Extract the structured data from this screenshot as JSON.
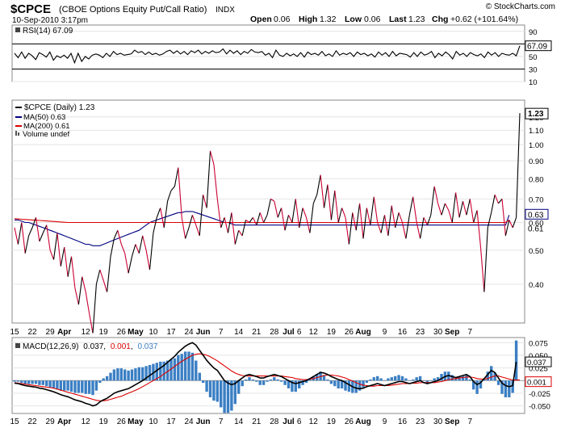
{
  "header": {
    "symbol": "$CPCE",
    "name": "(CBOE Options Equity Put/Call Ratio)",
    "exchange": "INDX",
    "date": "10-Sep-2010 3:17pm",
    "open_label": "Open",
    "open": "0.06",
    "high_label": "High",
    "high": "1.32",
    "low_label": "Low",
    "low": "0.06",
    "last_label": "Last",
    "last": "1.23",
    "chg_label": "Chg",
    "chg": "+0.62 (+101.64%)",
    "watermark": "© StockCharts.com"
  },
  "chart_data": [
    {
      "type": "line",
      "panel": "RSI",
      "legend": "RSI(14) 67.09",
      "ylim": [
        10,
        100
      ],
      "yticks": [
        "90",
        "70",
        "50",
        "30",
        "10"
      ],
      "ref_lines": [
        70,
        30
      ],
      "last_value": "67.09",
      "series": [
        {
          "name": "RSI(14)",
          "color": "#000000",
          "values": [
            55,
            48,
            57,
            47,
            55,
            51,
            45,
            56,
            53,
            49,
            57,
            44,
            51,
            48,
            52,
            47,
            55,
            40,
            55,
            42,
            50,
            46,
            52,
            54,
            52,
            48,
            55,
            50,
            58,
            53,
            55,
            52,
            53,
            54,
            60,
            56,
            58,
            53,
            57,
            53,
            55,
            52,
            54,
            58,
            60,
            55,
            59,
            54,
            58,
            53,
            59,
            56,
            60,
            54,
            58,
            55,
            59,
            56,
            57,
            62,
            54,
            60,
            55,
            59,
            53,
            58,
            55,
            61,
            57,
            56,
            58,
            52,
            55,
            48,
            60,
            52,
            50,
            55,
            51,
            54,
            50,
            56,
            49,
            57,
            53,
            55,
            52,
            58,
            51,
            54,
            50,
            59,
            52,
            55,
            53,
            56,
            50,
            57,
            53,
            55,
            51,
            54,
            49,
            57,
            52,
            56,
            50,
            58,
            51,
            55,
            54,
            53,
            49,
            56,
            50,
            57,
            52,
            54,
            58,
            48,
            55,
            51,
            57,
            53,
            46,
            58,
            52,
            55,
            50,
            56,
            53,
            51,
            54,
            48,
            57,
            52,
            56,
            50,
            55,
            53,
            52,
            55,
            51,
            67
          ]
        }
      ]
    },
    {
      "type": "line",
      "panel": "Price",
      "scale": "log",
      "ylim": [
        0.31,
        1.34
      ],
      "yticks": [
        "1.20",
        "1.10",
        "1.00",
        "0.90",
        "0.80",
        "0.70",
        "0.60",
        "0.50",
        "0.40"
      ],
      "legend": [
        "$CPCE (Daily) 1.23",
        "MA(50) 0.63",
        "MA(200) 0.61",
        "Volume undef"
      ],
      "last_labels": [
        "1.23",
        "0.63",
        "0.61"
      ],
      "series": [
        {
          "name": "$CPCE (Daily)",
          "color_up": "#000000",
          "color_down": "#cc0033",
          "values": [
            0.58,
            0.52,
            0.6,
            0.49,
            0.55,
            0.58,
            0.62,
            0.53,
            0.56,
            0.59,
            0.5,
            0.47,
            0.56,
            0.45,
            0.51,
            0.42,
            0.48,
            0.39,
            0.35,
            0.42,
            0.38,
            0.33,
            0.29,
            0.4,
            0.44,
            0.41,
            0.38,
            0.48,
            0.54,
            0.57,
            0.52,
            0.49,
            0.43,
            0.48,
            0.52,
            0.49,
            0.55,
            0.5,
            0.44,
            0.56,
            0.62,
            0.66,
            0.58,
            0.69,
            0.74,
            0.76,
            0.86,
            0.62,
            0.54,
            0.58,
            0.63,
            0.59,
            0.55,
            0.72,
            0.66,
            0.96,
            0.88,
            0.7,
            0.58,
            0.62,
            0.56,
            0.64,
            0.52,
            0.57,
            0.55,
            0.61,
            0.6,
            0.62,
            0.59,
            0.64,
            0.6,
            0.63,
            0.7,
            0.69,
            0.62,
            0.66,
            0.57,
            0.63,
            0.6,
            0.7,
            0.58,
            0.66,
            0.62,
            0.56,
            0.68,
            0.72,
            0.82,
            0.66,
            0.77,
            0.61,
            0.74,
            0.6,
            0.66,
            0.62,
            0.52,
            0.64,
            0.57,
            0.68,
            0.54,
            0.66,
            0.59,
            0.71,
            0.6,
            0.56,
            0.63,
            0.55,
            0.67,
            0.58,
            0.64,
            0.6,
            0.54,
            0.63,
            0.71,
            0.6,
            0.54,
            0.62,
            0.59,
            0.63,
            0.76,
            0.68,
            0.63,
            0.68,
            0.65,
            0.6,
            0.73,
            0.62,
            0.69,
            0.63,
            0.7,
            0.6,
            0.65,
            0.51,
            0.38,
            0.58,
            0.64,
            0.72,
            0.68,
            0.7,
            0.55,
            0.61,
            0.58,
            0.62,
            1.23
          ]
        },
        {
          "name": "MA(50)",
          "color": "#000080",
          "values": [
            0.61,
            0.61,
            0.605,
            0.6,
            0.6,
            0.595,
            0.59,
            0.585,
            0.58,
            0.575,
            0.57,
            0.565,
            0.56,
            0.555,
            0.55,
            0.545,
            0.54,
            0.535,
            0.53,
            0.525,
            0.52,
            0.52,
            0.515,
            0.515,
            0.515,
            0.52,
            0.525,
            0.53,
            0.535,
            0.54,
            0.545,
            0.55,
            0.555,
            0.56,
            0.565,
            0.57,
            0.58,
            0.59,
            0.6,
            0.605,
            0.61,
            0.615,
            0.62,
            0.625,
            0.63,
            0.635,
            0.64,
            0.64,
            0.645,
            0.645,
            0.645,
            0.64,
            0.635,
            0.63,
            0.625,
            0.62,
            0.615,
            0.61,
            0.605,
            0.6,
            0.6,
            0.595,
            0.59,
            0.59,
            0.59,
            0.59,
            0.59,
            0.59,
            0.59,
            0.59,
            0.59,
            0.59,
            0.59,
            0.59,
            0.59,
            0.59,
            0.59,
            0.59,
            0.59,
            0.59,
            0.59,
            0.59,
            0.59,
            0.59,
            0.59,
            0.59,
            0.59,
            0.59,
            0.59,
            0.59,
            0.59,
            0.59,
            0.59,
            0.59,
            0.59,
            0.59,
            0.59,
            0.59,
            0.59,
            0.59,
            0.59,
            0.59,
            0.59,
            0.59,
            0.59,
            0.59,
            0.59,
            0.59,
            0.59,
            0.59,
            0.59,
            0.59,
            0.59,
            0.59,
            0.59,
            0.59,
            0.59,
            0.59,
            0.59,
            0.59,
            0.59,
            0.59,
            0.59,
            0.59,
            0.59,
            0.59,
            0.59,
            0.59,
            0.59,
            0.59,
            0.59,
            0.59,
            0.59,
            0.59,
            0.59,
            0.59,
            0.59,
            0.59,
            0.59,
            0.63
          ]
        },
        {
          "name": "MA(200)",
          "color": "#dd0000",
          "values": [
            0.615,
            0.614,
            0.613,
            0.612,
            0.611,
            0.61,
            0.609,
            0.608,
            0.607,
            0.606,
            0.605,
            0.604,
            0.603,
            0.602,
            0.601,
            0.6,
            0.6,
            0.6,
            0.6,
            0.6,
            0.6,
            0.6,
            0.6,
            0.6,
            0.6,
            0.6,
            0.6,
            0.6,
            0.6,
            0.6,
            0.6,
            0.6,
            0.6,
            0.6,
            0.6,
            0.6,
            0.6,
            0.6,
            0.6,
            0.6,
            0.6,
            0.6,
            0.6,
            0.6,
            0.6,
            0.6,
            0.6,
            0.6,
            0.6,
            0.6,
            0.6,
            0.6,
            0.6,
            0.6,
            0.6,
            0.6,
            0.6,
            0.6,
            0.6,
            0.6,
            0.6,
            0.6,
            0.6,
            0.6,
            0.6,
            0.6,
            0.6,
            0.6,
            0.6,
            0.6,
            0.6,
            0.6,
            0.6,
            0.6,
            0.6,
            0.6,
            0.6,
            0.6,
            0.6,
            0.6,
            0.6,
            0.6,
            0.6,
            0.6,
            0.6,
            0.6,
            0.6,
            0.6,
            0.6,
            0.6,
            0.6,
            0.6,
            0.6,
            0.6,
            0.6,
            0.6,
            0.6,
            0.6,
            0.6,
            0.6,
            0.6,
            0.6,
            0.6,
            0.6,
            0.6,
            0.6,
            0.6,
            0.6,
            0.6,
            0.6,
            0.6,
            0.6,
            0.6,
            0.6,
            0.6,
            0.6,
            0.6,
            0.6,
            0.6,
            0.6,
            0.6,
            0.6,
            0.6,
            0.6,
            0.6,
            0.6,
            0.6,
            0.6,
            0.6,
            0.6,
            0.6,
            0.6,
            0.6,
            0.6,
            0.6,
            0.6,
            0.6,
            0.6,
            0.6,
            0.61
          ]
        }
      ]
    },
    {
      "type": "line",
      "panel": "MACD",
      "legend_prefix": "MACD(12,26,9)",
      "legend_values": [
        "0.037",
        "0.001",
        "0.037"
      ],
      "ylim": [
        -0.065,
        0.085
      ],
      "yticks": [
        "0.075",
        "0.050",
        "0.025",
        "-0.025",
        "-0.050"
      ],
      "last_labels": [
        "0.037",
        "0.001"
      ],
      "series": [
        {
          "name": "MACD",
          "color": "#000000",
          "values": [
            -0.005,
            -0.006,
            -0.008,
            -0.01,
            -0.011,
            -0.012,
            -0.013,
            -0.015,
            -0.016,
            -0.018,
            -0.02,
            -0.022,
            -0.025,
            -0.028,
            -0.03,
            -0.032,
            -0.035,
            -0.038,
            -0.04,
            -0.042,
            -0.045,
            -0.047,
            -0.05,
            -0.048,
            -0.042,
            -0.038,
            -0.035,
            -0.03,
            -0.025,
            -0.022,
            -0.02,
            -0.018,
            -0.016,
            -0.012,
            -0.008,
            -0.004,
            0.0,
            0.005,
            0.01,
            0.015,
            0.02,
            0.025,
            0.03,
            0.036,
            0.042,
            0.048,
            0.056,
            0.062,
            0.068,
            0.072,
            0.075,
            0.07,
            0.06,
            0.05,
            0.04,
            0.032,
            0.025,
            0.02,
            0.01,
            0.0,
            -0.005,
            -0.008,
            -0.006,
            0.0,
            0.005,
            0.01,
            0.012,
            0.01,
            0.008,
            0.005,
            0.005,
            0.008,
            0.01,
            0.012,
            0.01,
            0.008,
            0.004,
            0.0,
            -0.004,
            -0.006,
            -0.004,
            -0.002,
            0.0,
            0.004,
            0.008,
            0.012,
            0.016,
            0.015,
            0.012,
            0.008,
            0.005,
            0.002,
            0.0,
            -0.004,
            -0.008,
            -0.012,
            -0.015,
            -0.016,
            -0.015,
            -0.012,
            -0.01,
            -0.008,
            -0.006,
            -0.008,
            -0.01,
            -0.008,
            -0.006,
            -0.004,
            -0.002,
            -0.002,
            -0.004,
            -0.006,
            -0.004,
            -0.002,
            0.0,
            -0.004,
            -0.006,
            -0.004,
            -0.002,
            0.0,
            0.004,
            0.008,
            0.01,
            0.008,
            0.006,
            0.008,
            0.01,
            0.012,
            0.008,
            -0.002,
            -0.008,
            -0.004,
            0.004,
            0.012,
            0.02,
            0.016,
            0.005,
            -0.005,
            -0.01,
            -0.012,
            -0.01,
            0.037
          ]
        },
        {
          "name": "Signal",
          "color": "#dd0000",
          "values": [
            -0.004,
            -0.005,
            -0.006,
            -0.007,
            -0.008,
            -0.009,
            -0.01,
            -0.011,
            -0.012,
            -0.013,
            -0.014,
            -0.015,
            -0.017,
            -0.019,
            -0.021,
            -0.023,
            -0.025,
            -0.027,
            -0.029,
            -0.031,
            -0.033,
            -0.035,
            -0.037,
            -0.039,
            -0.04,
            -0.04,
            -0.039,
            -0.037,
            -0.035,
            -0.033,
            -0.031,
            -0.028,
            -0.025,
            -0.022,
            -0.019,
            -0.016,
            -0.012,
            -0.008,
            -0.004,
            0.0,
            0.004,
            0.008,
            0.013,
            0.018,
            0.023,
            0.028,
            0.033,
            0.038,
            0.042,
            0.046,
            0.05,
            0.052,
            0.053,
            0.052,
            0.05,
            0.047,
            0.043,
            0.039,
            0.034,
            0.029,
            0.024,
            0.019,
            0.015,
            0.012,
            0.01,
            0.009,
            0.009,
            0.009,
            0.009,
            0.009,
            0.009,
            0.009,
            0.009,
            0.009,
            0.009,
            0.009,
            0.008,
            0.007,
            0.006,
            0.004,
            0.003,
            0.002,
            0.002,
            0.003,
            0.004,
            0.006,
            0.008,
            0.01,
            0.011,
            0.011,
            0.01,
            0.009,
            0.007,
            0.005,
            0.002,
            -0.001,
            -0.004,
            -0.007,
            -0.009,
            -0.01,
            -0.011,
            -0.011,
            -0.01,
            -0.01,
            -0.01,
            -0.01,
            -0.009,
            -0.008,
            -0.007,
            -0.006,
            -0.006,
            -0.006,
            -0.005,
            -0.005,
            -0.004,
            -0.004,
            -0.004,
            -0.004,
            -0.004,
            -0.003,
            -0.002,
            0.0,
            0.002,
            0.003,
            0.004,
            0.005,
            0.006,
            0.007,
            0.007,
            0.006,
            0.004,
            0.003,
            0.003,
            0.004,
            0.007,
            0.009,
            0.009,
            0.007,
            0.005,
            0.003,
            0.001,
            0.001,
            0.001
          ]
        },
        {
          "name": "Histogram",
          "color": "#3b7fc4"
        }
      ]
    }
  ],
  "x_axis": {
    "labels": [
      {
        "text": "15",
        "i": 0
      },
      {
        "text": "22",
        "i": 5
      },
      {
        "text": "29",
        "i": 10
      },
      {
        "text": "Apr",
        "i": 14,
        "bold": true
      },
      {
        "text": "12",
        "i": 20
      },
      {
        "text": "19",
        "i": 25
      },
      {
        "text": "26",
        "i": 30
      },
      {
        "text": "May",
        "i": 34,
        "bold": true
      },
      {
        "text": "10",
        "i": 39
      },
      {
        "text": "17",
        "i": 44
      },
      {
        "text": "24",
        "i": 49
      },
      {
        "text": "Jun",
        "i": 53,
        "bold": true
      },
      {
        "text": "7",
        "i": 58
      },
      {
        "text": "14",
        "i": 63
      },
      {
        "text": "21",
        "i": 68
      },
      {
        "text": "28",
        "i": 73
      },
      {
        "text": "Jul",
        "i": 77,
        "bold": true
      },
      {
        "text": "6",
        "i": 80
      },
      {
        "text": "12",
        "i": 84
      },
      {
        "text": "19",
        "i": 89
      },
      {
        "text": "26",
        "i": 94
      },
      {
        "text": "Aug",
        "i": 98,
        "bold": true
      },
      {
        "text": "9",
        "i": 104
      },
      {
        "text": "16",
        "i": 109
      },
      {
        "text": "23",
        "i": 114
      },
      {
        "text": "30",
        "i": 119
      },
      {
        "text": "Sep",
        "i": 123,
        "bold": true
      },
      {
        "text": "7",
        "i": 128
      }
    ]
  }
}
